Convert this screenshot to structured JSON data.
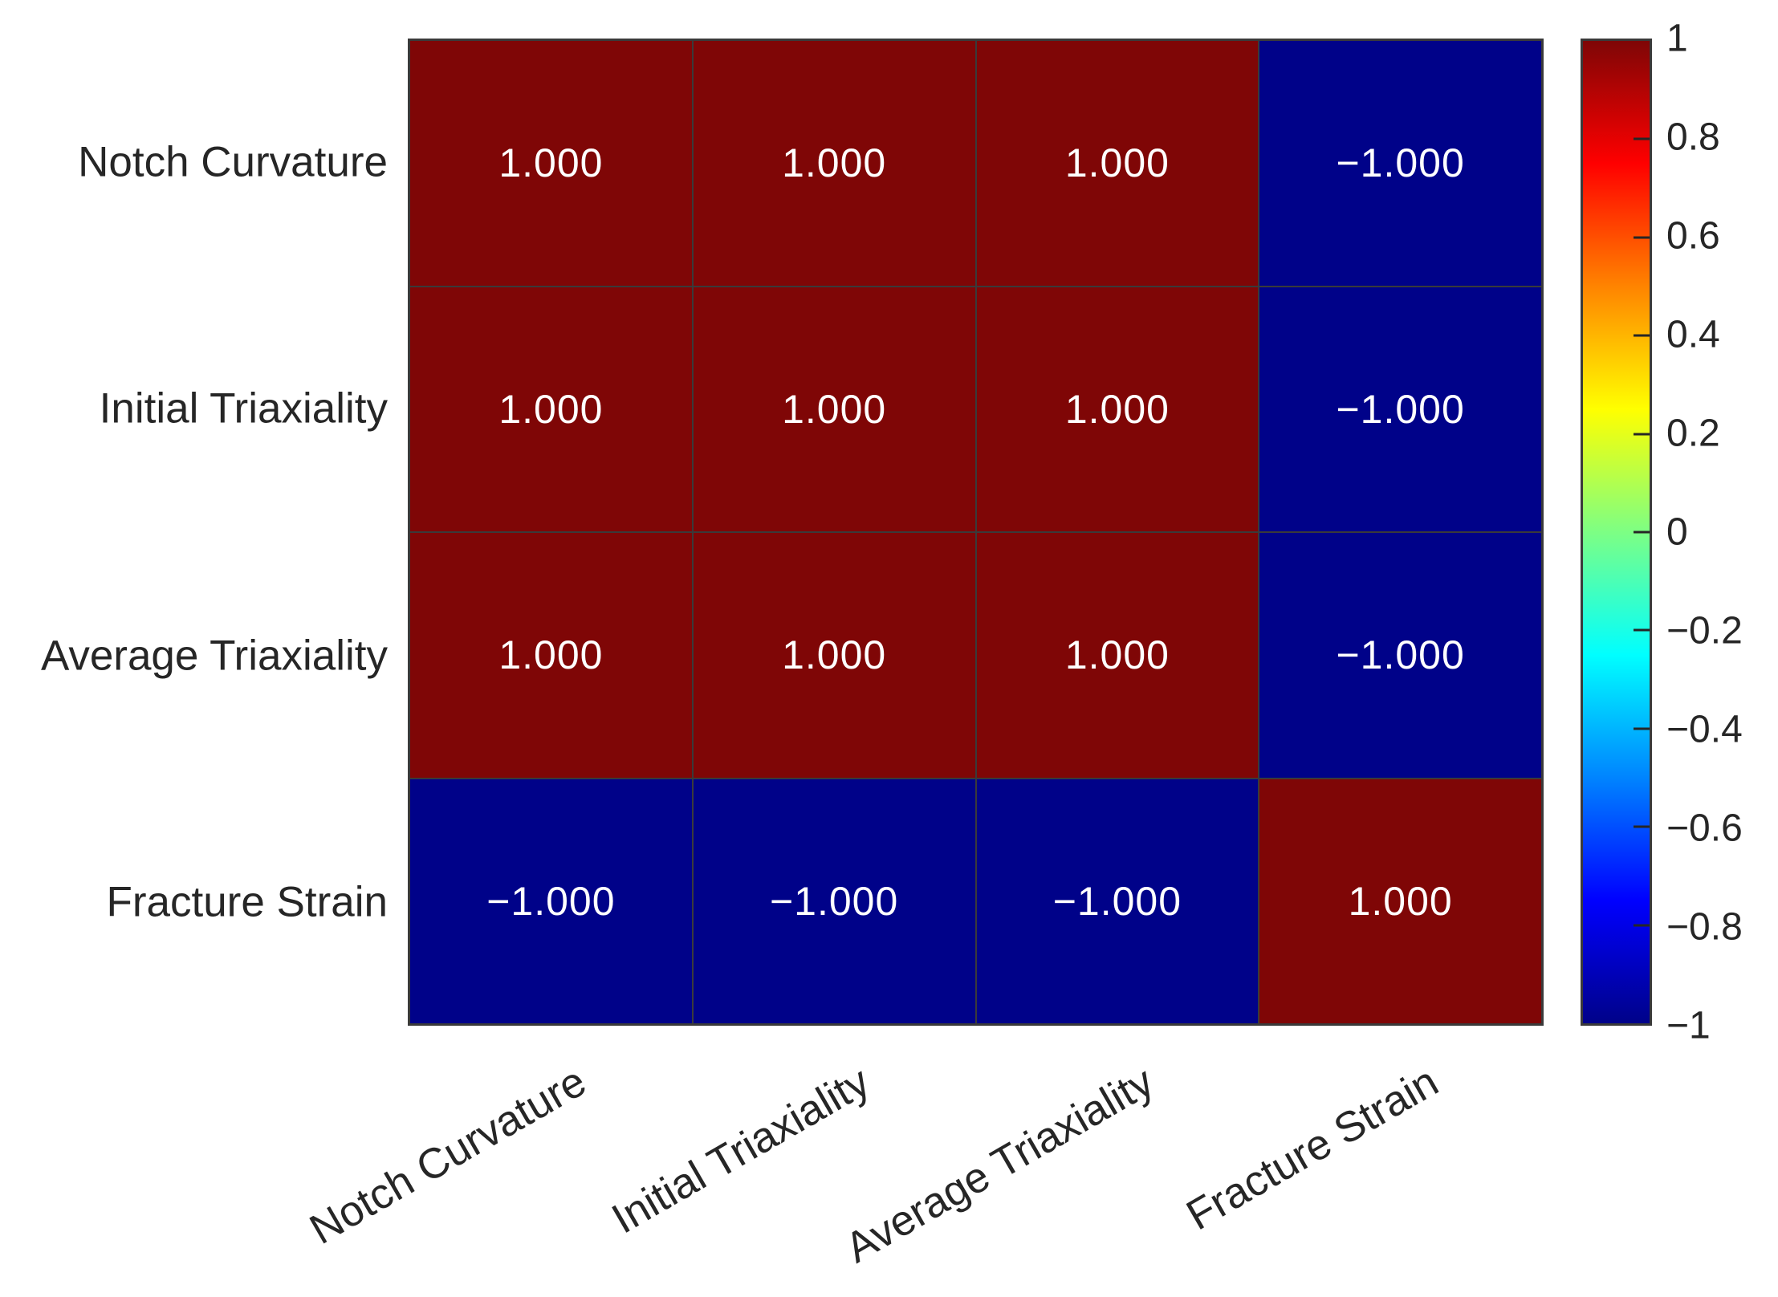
{
  "chart_data": {
    "type": "heatmap",
    "title": "",
    "categories": [
      "Notch Curvature",
      "Initial Triaxiality",
      "Average Triaxiality",
      "Fracture Strain"
    ],
    "matrix": [
      [
        1.0,
        1.0,
        1.0,
        -1.0
      ],
      [
        1.0,
        1.0,
        1.0,
        -1.0
      ],
      [
        1.0,
        1.0,
        1.0,
        -1.0
      ],
      [
        -1.0,
        -1.0,
        -1.0,
        1.0
      ]
    ],
    "cell_labels": [
      [
        "1.000",
        "1.000",
        "1.000",
        "−1.000"
      ],
      [
        "1.000",
        "1.000",
        "1.000",
        "−1.000"
      ],
      [
        "1.000",
        "1.000",
        "1.000",
        "−1.000"
      ],
      [
        "−1.000",
        "−1.000",
        "−1.000",
        "1.000"
      ]
    ],
    "value_range": [
      -1,
      1
    ],
    "colormap": "jet",
    "colorbar": {
      "ticks": [
        1,
        0.8,
        0.6,
        0.4,
        0.2,
        0,
        -0.2,
        -0.4,
        -0.6,
        -0.8,
        -1
      ],
      "tick_labels": [
        "1",
        "0.8",
        "0.6",
        "0.4",
        "0.2",
        "0",
        "−0.2",
        "−0.4",
        "−0.6",
        "−0.8",
        "−1"
      ],
      "position": "right"
    },
    "colors": {
      "positive_cell": "#7f0606",
      "negative_cell": "#000289",
      "grid_line": "#3a3a3a",
      "cell_text": "#ffffff",
      "axis_text": "#262626"
    },
    "layout_hints": {
      "x_tick_rotation_deg": 30,
      "grid": "on"
    }
  }
}
